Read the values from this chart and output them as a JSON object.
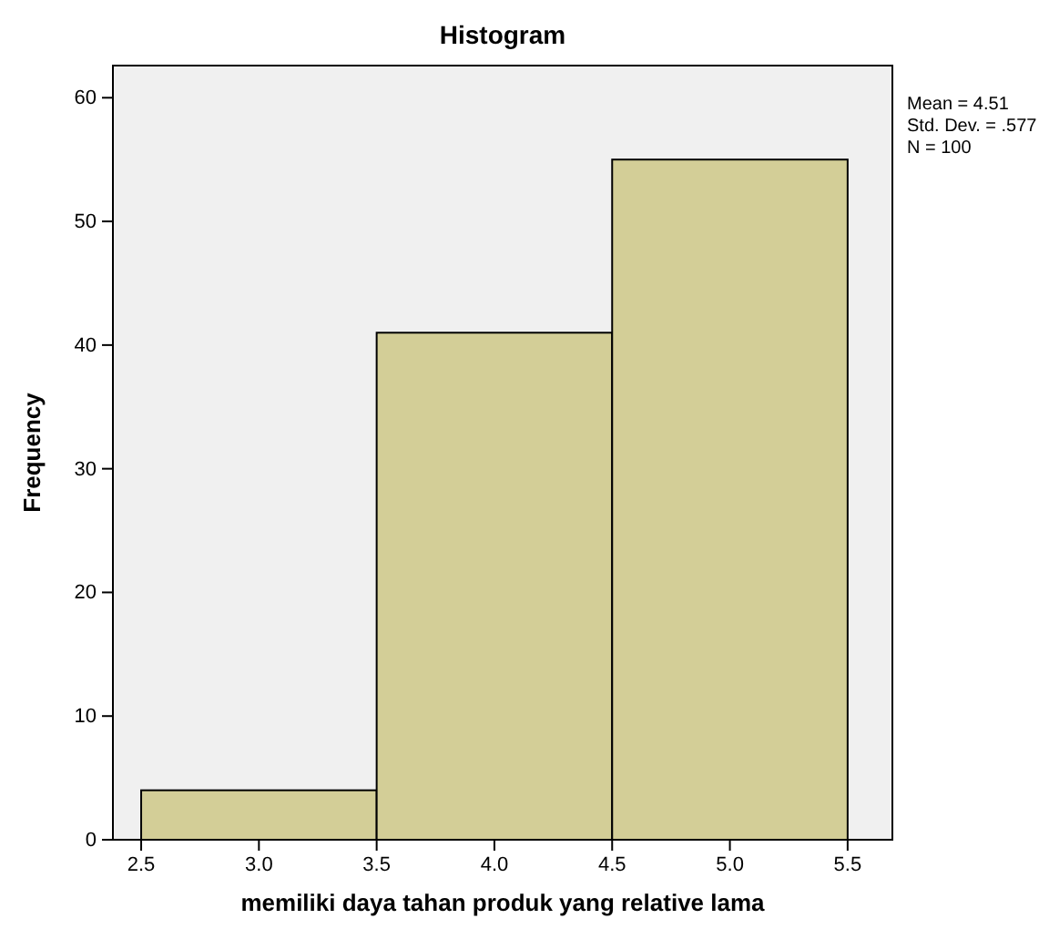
{
  "chart_data": {
    "type": "histogram",
    "title": "Histogram",
    "xlabel": "memiliki daya tahan produk yang relative lama",
    "ylabel": "Frequency",
    "bins": [
      2.5,
      3.5,
      4.5,
      5.5
    ],
    "values": [
      4,
      41,
      55
    ],
    "color": "#d3ce97",
    "xlim": [
      2.38,
      5.69
    ],
    "ylim": [
      0,
      62.6
    ],
    "xticks": [
      2.5,
      {
        "value": 3,
        "label": "3.0"
      },
      3.5,
      {
        "value": 4,
        "label": "4.0"
      },
      4.5,
      {
        "value": 5,
        "label": "5.0"
      },
      5.5
    ],
    "yticks": [
      0,
      10,
      20,
      30,
      40,
      50,
      60
    ],
    "annotations": [
      "Mean = 4.51",
      "Std. Dev. = .577",
      "N = 100"
    ]
  }
}
